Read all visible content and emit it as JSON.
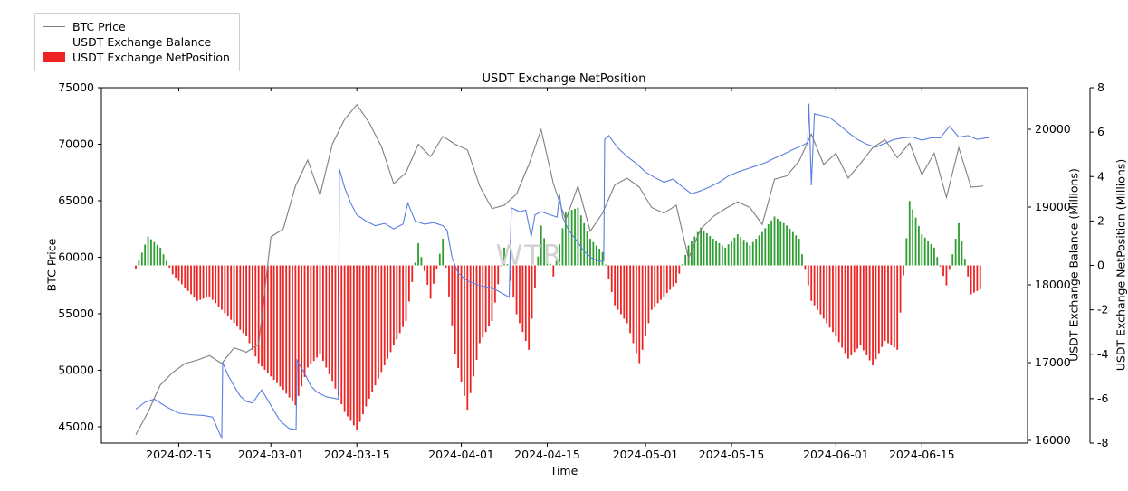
{
  "figure": {
    "title": "USDT Exchange NetPosition",
    "xlabel": "Time",
    "watermark": "WTR",
    "background": "#ffffff",
    "frame_color": "#000000"
  },
  "legend": {
    "entries": [
      {
        "label": "BTC Price",
        "swatch": "line",
        "color": "#7f7f7f"
      },
      {
        "label": "USDT Exchange Balance",
        "swatch": "line",
        "color": "#5b7fe0"
      },
      {
        "label": "USDT Exchange NetPosition",
        "swatch": "patch",
        "color": "#ee2424"
      }
    ]
  },
  "chart_data": {
    "type": "mixed",
    "title": "USDT Exchange NetPosition",
    "xlabel": "Time",
    "watermark": "WTR",
    "grid": false,
    "legend_position": "upper-left-outside",
    "x_axis": {
      "unit": "days since 2024-02-08",
      "domain_days": [
        -5.6,
        145.2
      ],
      "tick_days": [
        7,
        22,
        36,
        53,
        67,
        83,
        97,
        114,
        128
      ],
      "tick_labels": [
        "2024-02-15",
        "2024-03-01",
        "2024-03-15",
        "2024-04-01",
        "2024-04-15",
        "2024-05-01",
        "2024-05-15",
        "2024-06-01",
        "2024-06-15"
      ]
    },
    "axes": {
      "left": {
        "label": "BTC Price",
        "ticks": [
          45000,
          50000,
          55000,
          60000,
          65000,
          70000,
          75000
        ],
        "range": [
          43560,
          75000
        ]
      },
      "right_balance": {
        "label": "USDT Exchange Balance (Millions)",
        "ticks": [
          16000,
          17000,
          18000,
          19000,
          20000
        ],
        "range": [
          15965,
          20535
        ]
      },
      "right_netposition": {
        "label": "USDT Exchange NetPosition (Millions)",
        "ticks": [
          -8,
          -6,
          -4,
          -2,
          0,
          2,
          4,
          6,
          8
        ],
        "range": [
          -8,
          8
        ]
      }
    },
    "series": [
      {
        "name": "BTC Price",
        "type": "line",
        "axis": "left",
        "color": "#7f7f7f",
        "day_start": 0,
        "day_step": 2,
        "values": [
          44300,
          46300,
          48700,
          49800,
          50600,
          50900,
          51300,
          50600,
          52000,
          51600,
          52300,
          61800,
          62500,
          66300,
          68600,
          65500,
          70000,
          72200,
          73500,
          71900,
          69800,
          66500,
          67500,
          70000,
          68900,
          70700,
          70000,
          69500,
          66300,
          64300,
          64600,
          65600,
          68200,
          71300,
          66500,
          63300,
          66300,
          62300,
          63900,
          66400,
          67000,
          66200,
          64400,
          63900,
          64600,
          59900,
          62500,
          63600,
          64300,
          64900,
          64400,
          62900,
          66900,
          67200,
          68500,
          70900,
          68200,
          69200,
          67000,
          68300,
          69700,
          70400,
          68800,
          70100,
          67300,
          69200,
          65300,
          69700,
          66200,
          66300
        ]
      },
      {
        "name": "USDT Exchange Balance",
        "type": "line",
        "axis": "right_balance",
        "color": "#5b7fe0",
        "points": [
          [
            0,
            16400
          ],
          [
            1.5,
            16490
          ],
          [
            3,
            16530
          ],
          [
            5,
            16430
          ],
          [
            7,
            16350
          ],
          [
            9,
            16330
          ],
          [
            11,
            16320
          ],
          [
            12.5,
            16300
          ],
          [
            13.8,
            16060
          ],
          [
            14,
            16040
          ],
          [
            14.15,
            17000
          ],
          [
            15,
            16840
          ],
          [
            16,
            16700
          ],
          [
            17,
            16570
          ],
          [
            18,
            16500
          ],
          [
            19,
            16480
          ],
          [
            20.5,
            16650
          ],
          [
            22,
            16450
          ],
          [
            23.5,
            16250
          ],
          [
            25,
            16150
          ],
          [
            26.1,
            16140
          ],
          [
            26.25,
            17030
          ],
          [
            27.5,
            16860
          ],
          [
            28.5,
            16700
          ],
          [
            29.5,
            16620
          ],
          [
            31,
            16560
          ],
          [
            32.4,
            16540
          ],
          [
            33,
            16530
          ],
          [
            33.15,
            19490
          ],
          [
            34,
            19250
          ],
          [
            35,
            19050
          ],
          [
            36,
            18900
          ],
          [
            37.5,
            18820
          ],
          [
            39,
            18760
          ],
          [
            40.5,
            18790
          ],
          [
            42,
            18720
          ],
          [
            43.5,
            18780
          ],
          [
            44.3,
            19050
          ],
          [
            45.5,
            18820
          ],
          [
            47,
            18780
          ],
          [
            48.5,
            18800
          ],
          [
            50,
            18760
          ],
          [
            50.7,
            18700
          ],
          [
            51.5,
            18350
          ],
          [
            52.5,
            18150
          ],
          [
            54,
            18050
          ],
          [
            56,
            17990
          ],
          [
            58,
            17960
          ],
          [
            59.5,
            17900
          ],
          [
            60.8,
            17840
          ],
          [
            61.15,
            18990
          ],
          [
            62.5,
            18940
          ],
          [
            63.5,
            18960
          ],
          [
            64.4,
            18620
          ],
          [
            65,
            18900
          ],
          [
            66,
            18940
          ],
          [
            67.5,
            18900
          ],
          [
            68.6,
            18870
          ],
          [
            69,
            19160
          ],
          [
            69.5,
            18870
          ],
          [
            70.5,
            18700
          ],
          [
            71.5,
            18600
          ],
          [
            73,
            18430
          ],
          [
            74.5,
            18330
          ],
          [
            75.8,
            18300
          ],
          [
            76.2,
            18310
          ],
          [
            76.35,
            19870
          ],
          [
            77,
            19920
          ],
          [
            78.5,
            19760
          ],
          [
            80,
            19650
          ],
          [
            81.5,
            19560
          ],
          [
            83,
            19450
          ],
          [
            84.5,
            19380
          ],
          [
            86,
            19320
          ],
          [
            87.5,
            19360
          ],
          [
            89,
            19260
          ],
          [
            90.5,
            19170
          ],
          [
            92,
            19210
          ],
          [
            93.5,
            19260
          ],
          [
            95,
            19320
          ],
          [
            96.5,
            19400
          ],
          [
            98,
            19450
          ],
          [
            99.5,
            19490
          ],
          [
            101,
            19530
          ],
          [
            102.5,
            19570
          ],
          [
            104,
            19630
          ],
          [
            105.5,
            19680
          ],
          [
            107,
            19740
          ],
          [
            108.5,
            19790
          ],
          [
            109.4,
            19830
          ],
          [
            109.6,
            20330
          ],
          [
            110,
            19280
          ],
          [
            110.5,
            20200
          ],
          [
            111.5,
            20180
          ],
          [
            113,
            20150
          ],
          [
            114.5,
            20060
          ],
          [
            116,
            19960
          ],
          [
            117.5,
            19870
          ],
          [
            119,
            19810
          ],
          [
            120.5,
            19770
          ],
          [
            122,
            19820
          ],
          [
            123.5,
            19870
          ],
          [
            125,
            19890
          ],
          [
            126.5,
            19900
          ],
          [
            128,
            19860
          ],
          [
            129.5,
            19890
          ],
          [
            131,
            19890
          ],
          [
            132.5,
            20040
          ],
          [
            134,
            19900
          ],
          [
            135.5,
            19920
          ],
          [
            137,
            19870
          ],
          [
            138.5,
            19890
          ],
          [
            139,
            19890
          ]
        ]
      },
      {
        "name": "USDT Exchange NetPosition",
        "type": "bar",
        "axis": "right_netposition",
        "color_positive": "#2d9e30",
        "color_negative": "#ee2424",
        "day_start": 0,
        "day_step": 2,
        "values": [
          -0.15,
          1.3,
          0.8,
          -0.4,
          -1.0,
          -1.6,
          -1.4,
          -2.0,
          -2.6,
          -3.2,
          -4.4,
          -5.0,
          -5.6,
          -6.3,
          -4.6,
          -4.0,
          -5.2,
          -6.6,
          -7.4,
          -6.0,
          -4.8,
          -3.6,
          -2.5,
          1.0,
          -1.5,
          1.2,
          -4.0,
          -6.5,
          -3.5,
          -2.5,
          0.8,
          -2.2,
          -3.8,
          1.8,
          -0.5,
          2.4,
          2.6,
          1.2,
          0.6,
          -1.8,
          -2.6,
          -4.4,
          -2.0,
          -1.4,
          -0.8,
          0.9,
          1.7,
          1.2,
          0.8,
          1.4,
          0.9,
          1.5,
          2.2,
          1.8,
          1.2,
          -1.6,
          -2.4,
          -3.2,
          -4.2,
          -3.6,
          -4.5,
          -3.4,
          -3.8,
          2.9,
          1.4,
          0.8,
          -0.9,
          1.9,
          -1.3,
          -1.0
        ]
      }
    ]
  }
}
